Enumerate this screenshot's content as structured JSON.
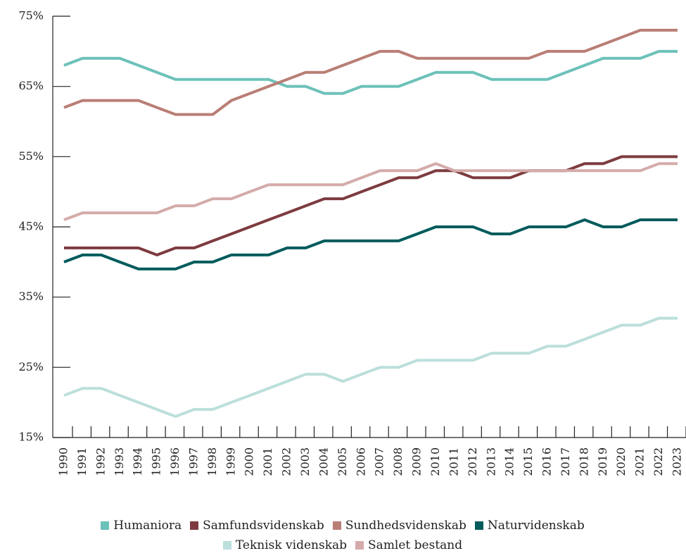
{
  "chart_data": {
    "type": "line",
    "categories": [
      "1990",
      "1991",
      "1992",
      "1993",
      "1994",
      "1995",
      "1996",
      "1997",
      "1998",
      "1999",
      "2000",
      "2001",
      "2002",
      "2003",
      "2004",
      "2005",
      "2006",
      "2007",
      "2008",
      "2009",
      "2010",
      "2011",
      "2012",
      "2013",
      "2014",
      "2015",
      "2016",
      "2017",
      "2018",
      "2019",
      "2020",
      "2021",
      "2022",
      "2023"
    ],
    "series": [
      {
        "name": "Humaniora",
        "color": "#6cc1b9",
        "values": [
          68,
          69,
          69,
          69,
          68,
          67,
          66,
          66,
          66,
          66,
          66,
          66,
          65,
          65,
          64,
          64,
          65,
          65,
          65,
          66,
          67,
          67,
          67,
          66,
          66,
          66,
          66,
          67,
          68,
          69,
          69,
          69,
          70,
          70
        ]
      },
      {
        "name": "Samfundsvidenskab",
        "color": "#7d3b40",
        "values": [
          42,
          42,
          42,
          42,
          42,
          41,
          42,
          42,
          43,
          44,
          45,
          46,
          47,
          48,
          49,
          49,
          50,
          51,
          52,
          52,
          53,
          53,
          52,
          52,
          52,
          53,
          53,
          53,
          54,
          54,
          55,
          55,
          55,
          55
        ]
      },
      {
        "name": "Sundhedsvidenskab",
        "color": "#b97e75",
        "values": [
          62,
          63,
          63,
          63,
          63,
          62,
          61,
          61,
          61,
          63,
          64,
          65,
          66,
          67,
          67,
          68,
          69,
          70,
          70,
          69,
          69,
          69,
          69,
          69,
          69,
          69,
          70,
          70,
          70,
          71,
          72,
          73,
          73,
          73
        ]
      },
      {
        "name": "Naturvidenskab",
        "color": "#005b5c",
        "values": [
          40,
          41,
          41,
          40,
          39,
          39,
          39,
          40,
          40,
          41,
          41,
          41,
          42,
          42,
          43,
          43,
          43,
          43,
          43,
          44,
          45,
          45,
          45,
          44,
          44,
          45,
          45,
          45,
          46,
          45,
          45,
          46,
          46,
          46
        ]
      },
      {
        "name": "Teknisk videnskab",
        "color": "#bbdfdc",
        "values": [
          21,
          22,
          22,
          21,
          20,
          19,
          18,
          19,
          19,
          20,
          21,
          22,
          23,
          24,
          24,
          23,
          24,
          25,
          25,
          26,
          26,
          26,
          26,
          27,
          27,
          27,
          28,
          28,
          29,
          30,
          31,
          31,
          32,
          32
        ]
      },
      {
        "name": "Samlet bestand",
        "color": "#d4abaa",
        "values": [
          46,
          47,
          47,
          47,
          47,
          47,
          48,
          48,
          49,
          49,
          50,
          51,
          51,
          51,
          51,
          51,
          52,
          53,
          53,
          53,
          54,
          53,
          53,
          53,
          53,
          53,
          53,
          53,
          53,
          53,
          53,
          53,
          54,
          54
        ]
      }
    ],
    "ylim": [
      15,
      75
    ],
    "yticks": [
      {
        "value": 15,
        "label": "15%"
      },
      {
        "value": 25,
        "label": "25%"
      },
      {
        "value": 35,
        "label": "35%"
      },
      {
        "value": 45,
        "label": "45%"
      },
      {
        "value": 55,
        "label": "55%"
      },
      {
        "value": 65,
        "label": "65%"
      },
      {
        "value": 75,
        "label": "75%"
      }
    ],
    "grid": false
  }
}
